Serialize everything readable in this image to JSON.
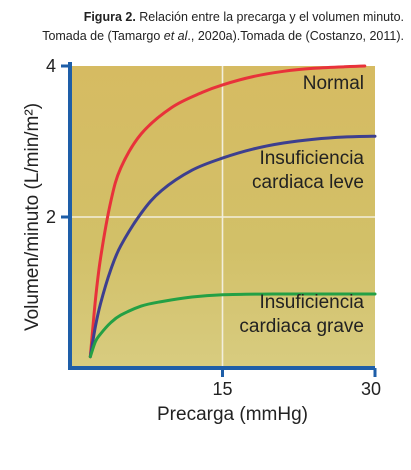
{
  "caption": {
    "line1_bold": "Figura 2.",
    "line1_rest": " Relación entre la precarga y el volumen minuto.",
    "line2_pre": "Tomada de (Tamargo ",
    "line2_italic": "et al",
    "line2_post": "., 2020a).Tomada de (Costanzo, 2011)."
  },
  "chart_data": {
    "type": "line",
    "xlabel": "Precarga (mmHg)",
    "ylabel": "Volumen/minuto (L/min/m²)",
    "xlim": [
      0,
      30
    ],
    "ylim": [
      0,
      4
    ],
    "x_ticks": [
      15,
      30
    ],
    "y_ticks": [
      2,
      4
    ],
    "x_tick_labels": [
      "15",
      "30"
    ],
    "y_tick_labels": [
      "2",
      "4"
    ],
    "grid": true,
    "background": "#cfb45a",
    "series": [
      {
        "name": "Normal",
        "label_lines": [
          "Normal"
        ],
        "color": "#e8323a",
        "x": [
          2,
          2.5,
          3,
          4,
          5,
          7,
          10,
          13,
          15,
          18,
          21,
          24,
          27,
          29
        ],
        "y": [
          0.15,
          0.9,
          1.45,
          2.2,
          2.65,
          3.1,
          3.45,
          3.65,
          3.75,
          3.86,
          3.93,
          3.97,
          3.99,
          4.0
        ]
      },
      {
        "name": "Insuficiencia cardiaca leve",
        "label_lines": [
          "Insuficiencia",
          "cardiaca leve"
        ],
        "color": "#3d3f8f",
        "x": [
          2,
          2.5,
          3,
          4,
          5,
          7,
          9,
          12,
          15,
          18,
          21,
          24,
          27,
          30
        ],
        "y": [
          0.15,
          0.55,
          0.85,
          1.3,
          1.62,
          2.05,
          2.35,
          2.62,
          2.78,
          2.9,
          2.98,
          3.03,
          3.06,
          3.07
        ]
      },
      {
        "name": "Insuficiencia cardiaca grave",
        "label_lines": [
          "Insuficiencia",
          "cardiaca grave"
        ],
        "color": "#24a045",
        "x": [
          2,
          2.5,
          3,
          4,
          5,
          7,
          9,
          12,
          15,
          20,
          25,
          30
        ],
        "y": [
          0.15,
          0.35,
          0.45,
          0.6,
          0.7,
          0.82,
          0.88,
          0.94,
          0.97,
          0.98,
          0.98,
          0.98
        ]
      }
    ]
  },
  "colors": {
    "axis": "#1e5ea8",
    "grid": "#f2eedc"
  }
}
